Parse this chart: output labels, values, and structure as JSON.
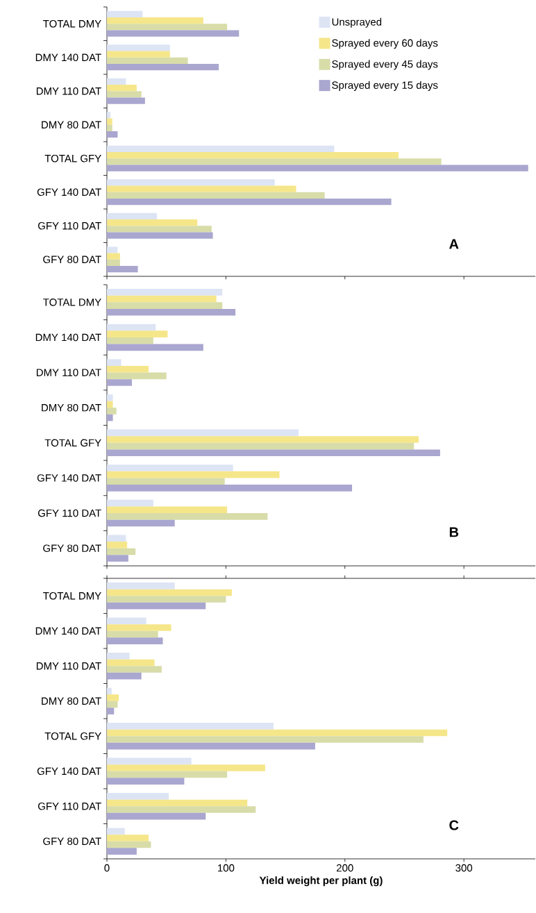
{
  "chart_data": [
    {
      "type": "bar",
      "orientation": "horizontal",
      "categories": [
        "TOTAL DMY",
        "DMY 140 DAT",
        "DMY 110 DAT",
        "DMY 80 DAT",
        "TOTAL GFY",
        "GFY 140 DAT",
        "GFY 110 DAT",
        "GFY 80 DAT"
      ],
      "series": [
        {
          "name": "Unsprayed",
          "color": "#dde4f4",
          "values": [
            30,
            53,
            16,
            3,
            191,
            141,
            42,
            9
          ]
        },
        {
          "name": "Sprayed every 60 days",
          "color": "#f5e68a",
          "values": [
            81,
            53,
            25,
            4.5,
            245,
            159,
            76,
            11
          ]
        },
        {
          "name": "Sprayed every 45 days",
          "color": "#d8dca8",
          "values": [
            101,
            68,
            29,
            4.5,
            281,
            183,
            88,
            11
          ]
        },
        {
          "name": "Sprayed every 15 days",
          "color": "#a9a6cf",
          "values": [
            111,
            94,
            32,
            9,
            354,
            239,
            89,
            26
          ]
        }
      ],
      "xlim": [
        0,
        360
      ],
      "xticks": [
        0,
        100,
        200,
        300
      ],
      "tick_labels": "y",
      "legend": "top right",
      "annotations": [
        "A"
      ]
    },
    {
      "type": "bar",
      "orientation": "horizontal",
      "categories": [
        "TOTAL DMY",
        "DMY 140 DAT",
        "DMY 110 DAT",
        "DMY 80 DAT",
        "TOTAL GFY",
        "GFY 140 DAT",
        "GFY 110 DAT",
        "GFY 80 DAT"
      ],
      "series": [
        {
          "color": "#dde4f4",
          "values": [
            97,
            41,
            12,
            5,
            161,
            106,
            39,
            16
          ]
        },
        {
          "color": "#f5e68a",
          "values": [
            92,
            51,
            35,
            5,
            262,
            145,
            101,
            17
          ]
        },
        {
          "color": "#d8dca8",
          "values": [
            97,
            39,
            50,
            8,
            258,
            99,
            135,
            24
          ]
        },
        {
          "color": "#a9a6cf",
          "values": [
            108,
            81,
            21,
            5,
            280,
            206,
            57,
            18
          ]
        }
      ],
      "xlim": [
        0,
        360
      ],
      "xticks": [
        0,
        100,
        200,
        300
      ],
      "tick_labels": "y",
      "annotations": [
        "B"
      ]
    },
    {
      "type": "bar",
      "orientation": "horizontal",
      "categories": [
        "TOTAL DMY",
        "DMY 140 DAT",
        "DMY 110 DAT",
        "DMY 80 DAT",
        "TOTAL GFY",
        "GFY 140 DAT",
        "GFY 110 DAT",
        "GFY 80 DAT"
      ],
      "series": [
        {
          "color": "#dde4f4",
          "values": [
            57,
            33,
            19,
            4,
            140,
            71,
            52,
            15
          ]
        },
        {
          "color": "#f5e68a",
          "values": [
            105,
            54,
            40,
            10,
            286,
            133,
            118,
            35
          ]
        },
        {
          "color": "#d8dca8",
          "values": [
            100,
            43,
            46,
            9,
            266,
            101,
            125,
            37
          ]
        },
        {
          "color": "#a9a6cf",
          "values": [
            83,
            47,
            29,
            6,
            175,
            65,
            83,
            25
          ]
        }
      ],
      "xlim": [
        0,
        360
      ],
      "xticks": [
        0,
        100,
        200,
        300
      ],
      "xlabel": "Yield weight per plant (g)",
      "annotations": [
        "C"
      ]
    }
  ]
}
